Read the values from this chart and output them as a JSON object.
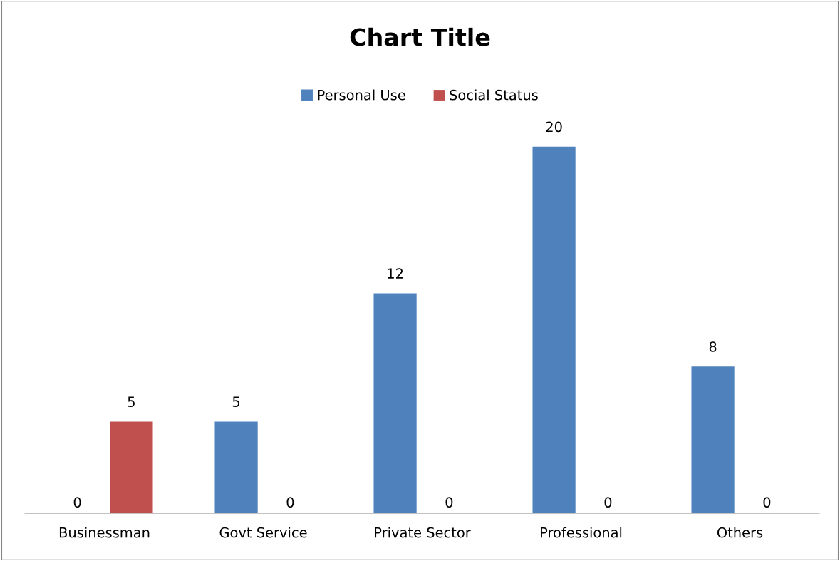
{
  "chart_data": {
    "type": "bar",
    "title": "Chart Title",
    "categories": [
      "Businessman",
      "Govt Service",
      "Private Sector",
      "Professional",
      "Others"
    ],
    "series": [
      {
        "name": "Personal Use",
        "color": "#4f81bd",
        "values": [
          0,
          5,
          12,
          20,
          8
        ]
      },
      {
        "name": "Social Status",
        "color": "#c0504d",
        "values": [
          5,
          0,
          0,
          0,
          0
        ]
      }
    ],
    "data_labels": true,
    "legend": "top",
    "grid": false,
    "tick_labels": "x"
  }
}
